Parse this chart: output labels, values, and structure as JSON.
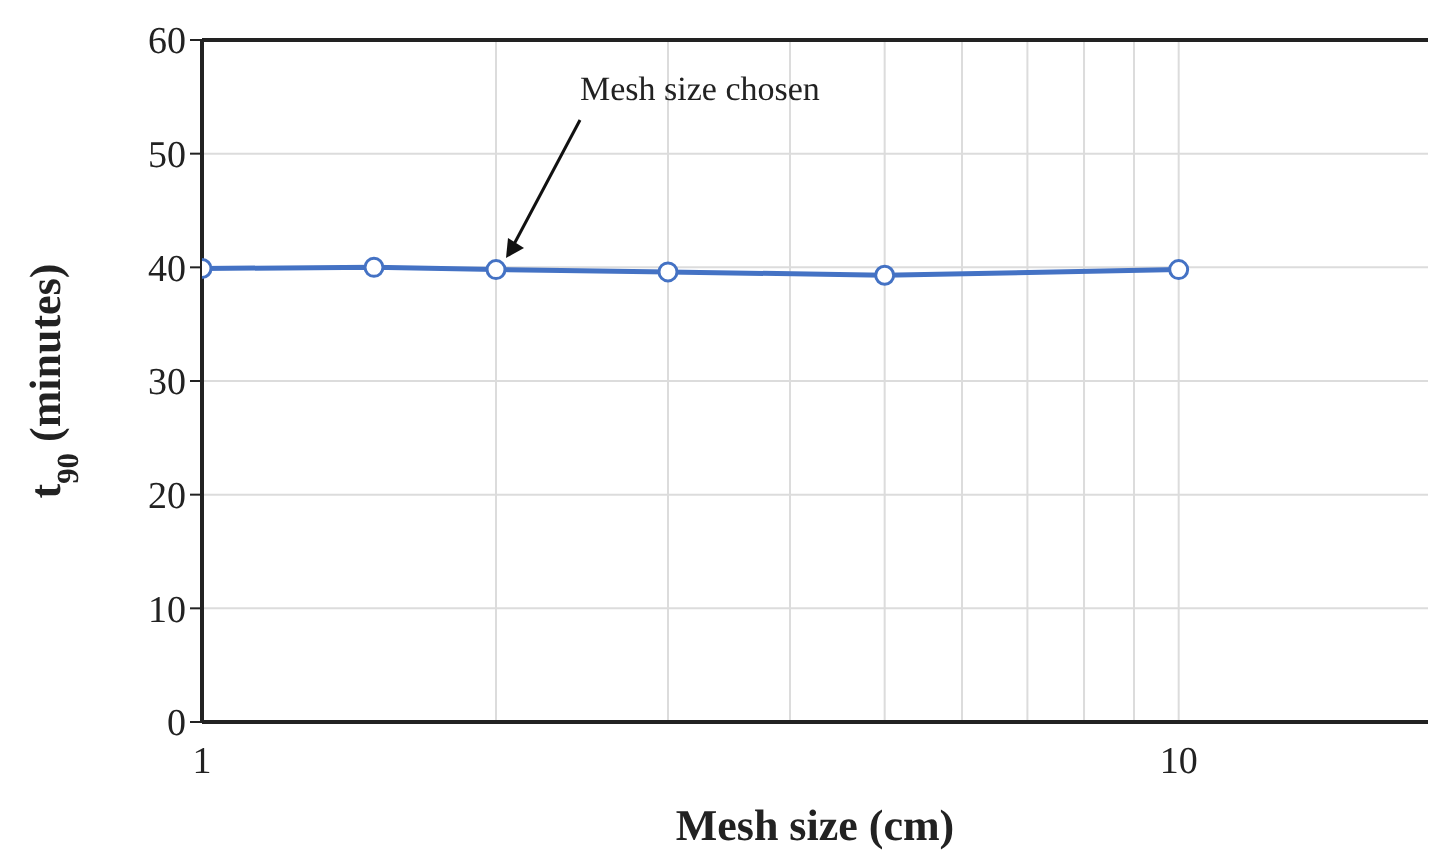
{
  "chart_data": {
    "type": "line",
    "xlabel": "Mesh size (cm)",
    "ylabel": "t$_{90}$ (minutes)",
    "x": [
      1,
      1.5,
      2,
      3,
      5,
      10
    ],
    "series": [
      {
        "color": "#4472c4",
        "values": [
          39.9,
          40,
          39.8,
          39.6,
          39.3,
          39.8
        ]
      }
    ],
    "log": "x",
    "xlim": [
      1,
      18
    ],
    "xticks": [
      1,
      {
        "value": 2,
        "label": null
      },
      {
        "value": 3,
        "label": null
      },
      {
        "value": 4,
        "label": null
      },
      {
        "value": 5,
        "label": null
      },
      {
        "value": 6,
        "label": null
      },
      {
        "value": 7,
        "label": null
      },
      {
        "value": 8,
        "label": null
      },
      {
        "value": 9,
        "label": null
      },
      10
    ],
    "ylim": [
      0,
      60
    ],
    "yticks": [
      0,
      10,
      20,
      30,
      40,
      50,
      60
    ],
    "grid": true,
    "marker": "circle",
    "line_style": "solid",
    "legend": false,
    "annotations": [
      "Mesh size chosen"
    ]
  }
}
